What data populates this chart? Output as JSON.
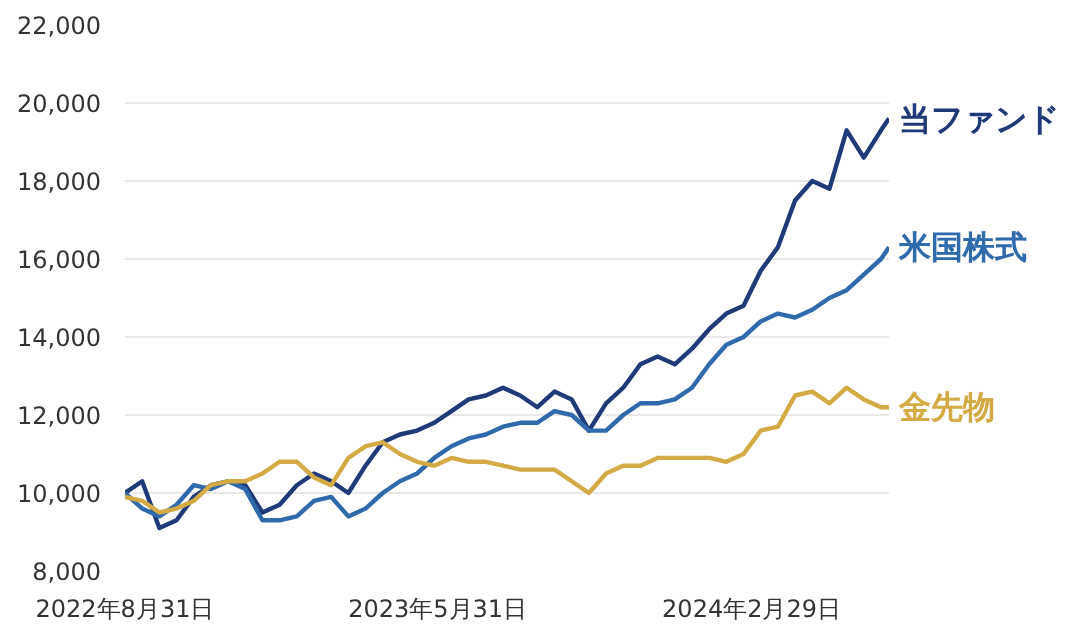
{
  "chart_data": {
    "type": "line",
    "x": [
      "2022-08-31",
      "2022-09-15",
      "2022-09-30",
      "2022-10-15",
      "2022-10-30",
      "2022-11-14",
      "2022-11-29",
      "2022-12-14",
      "2022-12-29",
      "2023-01-13",
      "2023-01-28",
      "2023-02-12",
      "2023-02-27",
      "2023-03-14",
      "2023-03-29",
      "2023-04-13",
      "2023-04-28",
      "2023-05-13",
      "2023-05-28",
      "2023-06-12",
      "2023-06-27",
      "2023-07-12",
      "2023-07-27",
      "2023-08-11",
      "2023-08-26",
      "2023-09-10",
      "2023-09-25",
      "2023-10-10",
      "2023-10-25",
      "2023-11-09",
      "2023-11-24",
      "2023-12-09",
      "2023-12-24",
      "2024-01-08",
      "2024-01-23",
      "2024-02-07",
      "2024-02-22",
      "2024-03-08",
      "2024-03-23",
      "2024-04-07",
      "2024-04-22",
      "2024-05-07",
      "2024-05-22",
      "2024-06-06",
      "2024-06-21",
      "2024-06-28"
    ],
    "series": [
      {
        "name": "当ファンド",
        "color": "#1f3a78",
        "values": [
          10000,
          10300,
          9100,
          9300,
          9900,
          10200,
          10300,
          10200,
          9500,
          9700,
          10200,
          10500,
          10300,
          10000,
          10700,
          11300,
          11500,
          11600,
          11800,
          12100,
          12400,
          12500,
          12700,
          12500,
          12200,
          12600,
          12400,
          11600,
          12300,
          12700,
          13300,
          13500,
          13300,
          13700,
          14200,
          14600,
          14800,
          15700,
          16300,
          17500,
          18000,
          17800,
          19300,
          18600,
          19300,
          19600
        ]
      },
      {
        "name": "米国株式",
        "color": "#2f6aad",
        "values": [
          10000,
          9600,
          9400,
          9700,
          10200,
          10100,
          10300,
          10100,
          9300,
          9300,
          9400,
          9800,
          9900,
          9400,
          9600,
          10000,
          10300,
          10500,
          10900,
          11200,
          11400,
          11500,
          11700,
          11800,
          11800,
          12100,
          12000,
          11600,
          11600,
          12000,
          12300,
          12300,
          12400,
          12700,
          13300,
          13800,
          14000,
          14400,
          14600,
          14500,
          14700,
          15000,
          15200,
          15600,
          16000,
          16300
        ]
      },
      {
        "name": "金先物",
        "color": "#d4aa45",
        "values": [
          9900,
          9800,
          9500,
          9600,
          9800,
          10200,
          10300,
          10300,
          10500,
          10800,
          10800,
          10400,
          10200,
          10900,
          11200,
          11300,
          11000,
          10800,
          10700,
          10900,
          10800,
          10800,
          10700,
          10600,
          10600,
          10600,
          10300,
          10000,
          10500,
          10700,
          10700,
          10900,
          10900,
          10900,
          10900,
          10800,
          11000,
          11600,
          11700,
          12500,
          12600,
          12300,
          12700,
          12400,
          12200,
          12200
        ]
      }
    ],
    "xlim": [
      "2022-08-31",
      "2024-06-28"
    ],
    "xticks": [
      {
        "value": "2022-08-31",
        "label": "2022年8月31日"
      },
      {
        "value": "2023-05-31",
        "label": "2023年5月31日"
      },
      {
        "value": "2024-02-29",
        "label": "2024年2月29日"
      }
    ],
    "ylim": [
      8000,
      22000
    ],
    "yticks": [
      {
        "value": 8000,
        "label": "8,000"
      },
      {
        "value": 10000,
        "label": "10,000"
      },
      {
        "value": 12000,
        "label": "12,000"
      },
      {
        "value": 14000,
        "label": "14,000"
      },
      {
        "value": 16000,
        "label": "16,000"
      },
      {
        "value": 18000,
        "label": "18,000"
      },
      {
        "value": 20000,
        "label": "20,000"
      },
      {
        "value": 22000,
        "label": "22,000"
      }
    ],
    "grid": "y",
    "marker": "none",
    "line_style": "solid"
  }
}
